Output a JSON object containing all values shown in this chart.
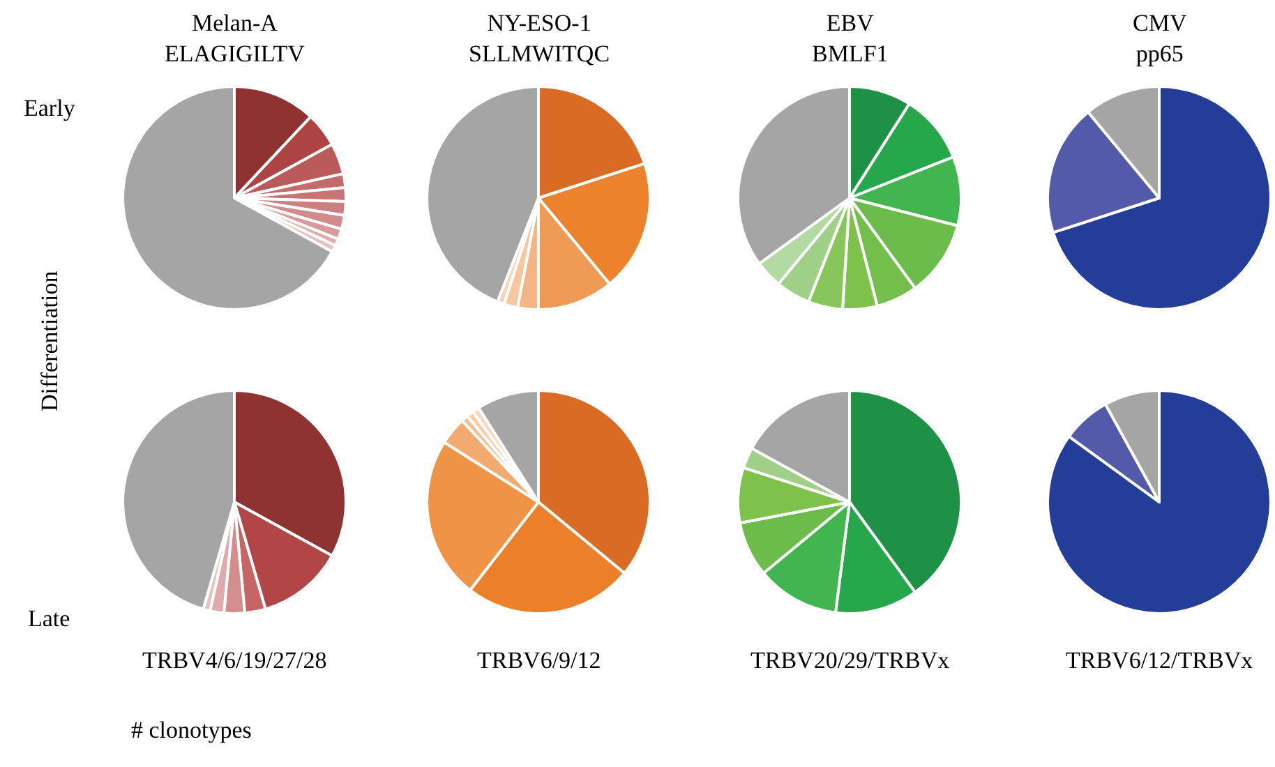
{
  "chart_data": [
    {
      "type": "pie",
      "title": "Melan-A\nELAGIGILTV",
      "categories": [
        null,
        null,
        null,
        null,
        null,
        null,
        null,
        null,
        null,
        null,
        null
      ],
      "values": [
        12,
        5,
        4.5,
        2,
        2,
        2,
        2,
        1.5,
        1,
        1,
        67
      ],
      "colors": [
        "#8e3232",
        "#ae4343",
        "#bb5a5a",
        "#c46a6a",
        "#c97474",
        "#cd7f7f",
        "#d28b8b",
        "#d89a9a",
        "#dfaaaa",
        "#e8c0c0",
        "#a5a5a5"
      ]
    },
    {
      "type": "pie",
      "title": "NY-ESO-1\nSLLMWITQC",
      "categories": [
        null,
        null,
        null,
        null,
        null,
        null,
        null
      ],
      "values": [
        20,
        19,
        11,
        3,
        2,
        1,
        44
      ],
      "colors": [
        "#da6b25",
        "#ec822b",
        "#ef9a55",
        "#f3b585",
        "#f6c7a0",
        "#f8d5b8",
        "#a5a5a5"
      ]
    },
    {
      "type": "pie",
      "title": "EBV\nBMLF1",
      "categories": [
        null,
        null,
        null,
        null,
        null,
        null,
        null,
        null,
        null,
        null
      ],
      "values": [
        9,
        10,
        10,
        11,
        6,
        5,
        5,
        5,
        4,
        35
      ],
      "colors": [
        "#1f9146",
        "#27a74b",
        "#41b54e",
        "#6bbc4a",
        "#74bf4c",
        "#7ec24b",
        "#86c65a",
        "#a0d088",
        "#b3daa3",
        "#a5a5a5"
      ]
    },
    {
      "type": "pie",
      "title": "CMV\npp65",
      "categories": [
        null,
        null,
        null
      ],
      "values": [
        70,
        19,
        11
      ],
      "colors": [
        "#233d98",
        "#545aaa",
        "#a5a5a5"
      ]
    },
    {
      "type": "pie",
      "annotations": [
        "TRBV4/6/19/27/28"
      ],
      "categories": [
        null,
        null,
        null,
        null,
        null,
        null,
        null
      ],
      "values": [
        33,
        12.5,
        3,
        3,
        2,
        1,
        45.5
      ],
      "colors": [
        "#8e3232",
        "#b24545",
        "#c76464",
        "#d48e8e",
        "#dfaaaa",
        "#e8c0c0",
        "#a5a5a5"
      ]
    },
    {
      "type": "pie",
      "annotations": [
        "TRBV6/9/12"
      ],
      "categories": [
        null,
        null,
        null,
        null,
        null,
        null,
        null,
        null
      ],
      "values": [
        36,
        24.5,
        23.5,
        4,
        1,
        1,
        1,
        9
      ],
      "colors": [
        "#da6b25",
        "#ec802a",
        "#ef9447",
        "#f2aa70",
        "#f5bf93",
        "#f7ccaa",
        "#f8d8bf",
        "#a5a5a5"
      ]
    },
    {
      "type": "pie",
      "annotations": [
        "TRBV20/29/TRBVx"
      ],
      "categories": [
        null,
        null,
        null,
        null,
        null,
        null,
        null
      ],
      "values": [
        40,
        12,
        12,
        8,
        8,
        3,
        17
      ],
      "colors": [
        "#1f9146",
        "#27a74b",
        "#41b54e",
        "#6bbc4a",
        "#7ec24b",
        "#a0d088",
        "#a5a5a5"
      ]
    },
    {
      "type": "pie",
      "annotations": [
        "TRBV6/12/TRBVx"
      ],
      "categories": [
        null,
        null,
        null
      ],
      "values": [
        85,
        7,
        8
      ],
      "colors": [
        "#233d98",
        "#545aaa",
        "#a5a5a5"
      ]
    },
    {
      "type": "other",
      "annotations": [
        "Early",
        "Differentiation",
        "Late",
        "# clonotypes"
      ]
    }
  ]
}
